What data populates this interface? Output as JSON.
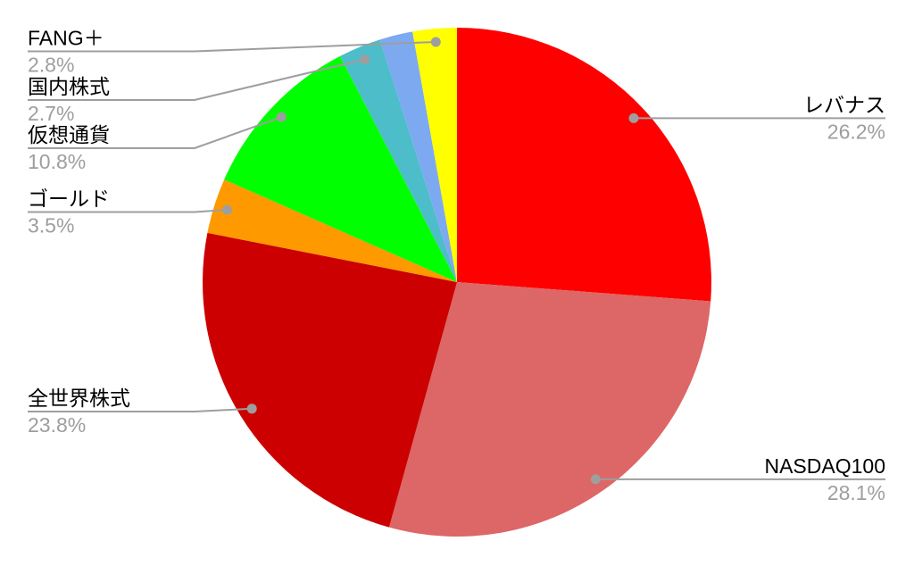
{
  "chart_data": {
    "type": "pie",
    "title": "",
    "background_color": "#ffffff",
    "start_angle_deg": 0,
    "direction": "clockwise",
    "legend": "none",
    "label_text_color": "#000000",
    "percent_text_color": "#9e9e9e",
    "leader_line_color": "#9e9e9e",
    "slices": [
      {
        "label": "レバナス",
        "percent": 26.2,
        "percent_label": "26.2%",
        "color": "#ff0000",
        "label_side": "right"
      },
      {
        "label": "NASDAQ100",
        "percent": 28.1,
        "percent_label": "28.1%",
        "color": "#dd6666",
        "label_side": "right"
      },
      {
        "label": "全世界株式",
        "percent": 23.8,
        "percent_label": "23.8%",
        "color": "#cc0000",
        "label_side": "left"
      },
      {
        "label": "ゴールド",
        "percent": 3.5,
        "percent_label": "3.5%",
        "color": "#ff9900",
        "label_side": "left"
      },
      {
        "label": "仮想通貨",
        "percent": 10.8,
        "percent_label": "10.8%",
        "color": "#00ff00",
        "label_side": "left"
      },
      {
        "label": "国内株式",
        "percent": 2.7,
        "percent_label": "2.7%",
        "color": "#4dbdc9",
        "label_side": "left"
      },
      {
        "label": "",
        "percent": 2.1,
        "percent_label": "",
        "color": "#7da9f1",
        "label_side": "none"
      },
      {
        "label": "FANG＋",
        "percent": 2.8,
        "percent_label": "2.8%",
        "color": "#ffff00",
        "label_side": "left"
      }
    ]
  }
}
